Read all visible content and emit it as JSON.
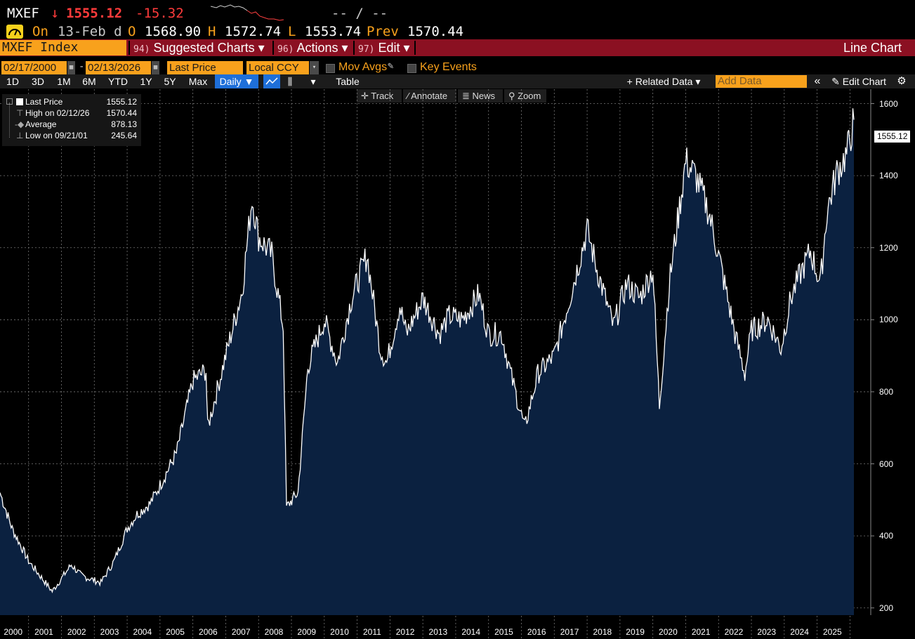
{
  "header": {
    "ticker": "MXEF",
    "arrow": "↓",
    "last": "1555.12",
    "change": "-15.32",
    "bid_ask": "-- / --",
    "on_label": "On",
    "date": "13-Feb d",
    "o_label": "O",
    "o_val": "1568.90",
    "h_label": "H",
    "h_val": "1572.74",
    "l_label": "L",
    "l_val": "1553.74",
    "prev_label": "Prev",
    "prev_val": "1570.44"
  },
  "function_bar": {
    "security": "MXEF Index",
    "items": [
      {
        "num": "94)",
        "label": "Suggested Charts ▾"
      },
      {
        "num": "96)",
        "label": "Actions ▾"
      },
      {
        "num": "97)",
        "label": "Edit ▾"
      }
    ],
    "right_title": "Line Chart"
  },
  "controls": {
    "start_date": "02/17/2000",
    "dash": "-",
    "end_date": "02/13/2026",
    "field": "Last Price",
    "currency": "Local CCY",
    "mov_avgs": "Mov Avgs",
    "key_events": "Key Events"
  },
  "toolbar": {
    "periods": [
      "1D",
      "3D",
      "1M",
      "6M",
      "YTD",
      "1Y",
      "5Y",
      "Max"
    ],
    "frequency": "Daily ▼",
    "table": "Table",
    "related": "+ Related Data ▾",
    "add_data_placeholder": "Add Data",
    "edit_chart": "Edit Chart"
  },
  "tools": [
    "Track",
    "Annotate",
    "News",
    "Zoom"
  ],
  "legend": [
    {
      "name": "Last Price",
      "value": "1555.12"
    },
    {
      "name": "High on 02/12/26",
      "value": "1570.44"
    },
    {
      "name": "Average",
      "value": "878.13"
    },
    {
      "name": "Low on 09/21/01",
      "value": "245.64"
    }
  ],
  "colors": {
    "accent": "#f8a11c",
    "down": "#ff3b3b",
    "fnbar": "#8b1022",
    "area": "#0b2140",
    "line": "#ffffff"
  },
  "chart_data": {
    "type": "area",
    "ylim": [
      180,
      1640
    ],
    "yticks": [
      "1600",
      "1400",
      "1200",
      "1000",
      "800",
      "600",
      "400",
      "200"
    ],
    "xticks": [
      "2000",
      "2001",
      "2002",
      "2003",
      "2004",
      "2005",
      "2006",
      "2007",
      "2008",
      "2009",
      "2010",
      "2011",
      "2012",
      "2013",
      "2014",
      "2015",
      "2016",
      "2017",
      "2018",
      "2019",
      "2020",
      "2021",
      "2022",
      "2023",
      "2024",
      "2025"
    ],
    "last_label": "1555.12",
    "x": [
      2000.13,
      2000.5,
      2001.0,
      2001.72,
      2002.3,
      2002.6,
      2003.2,
      2003.6,
      2004.0,
      2004.3,
      2004.7,
      2005.0,
      2005.5,
      2006.0,
      2006.4,
      2006.45,
      2007.0,
      2007.5,
      2007.8,
      2008.0,
      2008.4,
      2008.75,
      2008.85,
      2009.2,
      2009.5,
      2010.0,
      2010.4,
      2010.8,
      2011.3,
      2011.7,
      2011.9,
      2012.3,
      2012.5,
      2013.0,
      2013.5,
      2013.8,
      2014.2,
      2014.7,
      2015.0,
      2015.4,
      2015.7,
      2016.1,
      2016.5,
      2017.0,
      2017.5,
      2018.0,
      2018.3,
      2018.8,
      2019.2,
      2019.6,
      2020.0,
      2020.2,
      2020.5,
      2021.0,
      2021.3,
      2021.7,
      2022.0,
      2022.5,
      2022.8,
      2023.0,
      2023.5,
      2023.9,
      2024.2,
      2024.5,
      2024.8,
      2025.1,
      2025.3,
      2025.6,
      2025.9,
      2026.12
    ],
    "y": [
      520,
      420,
      330,
      246,
      320,
      290,
      270,
      330,
      420,
      460,
      490,
      540,
      630,
      830,
      860,
      700,
      900,
      1080,
      1340,
      1230,
      1180,
      980,
      480,
      520,
      870,
      1000,
      880,
      1050,
      1180,
      920,
      880,
      1040,
      960,
      1060,
      960,
      1010,
      1000,
      1070,
      960,
      960,
      840,
      700,
      850,
      900,
      1070,
      1250,
      1140,
      980,
      1100,
      1060,
      1140,
      760,
      1100,
      1440,
      1400,
      1300,
      1180,
      960,
      850,
      970,
      1000,
      920,
      1060,
      1130,
      1190,
      1100,
      1300,
      1410,
      1460,
      1555
    ]
  }
}
